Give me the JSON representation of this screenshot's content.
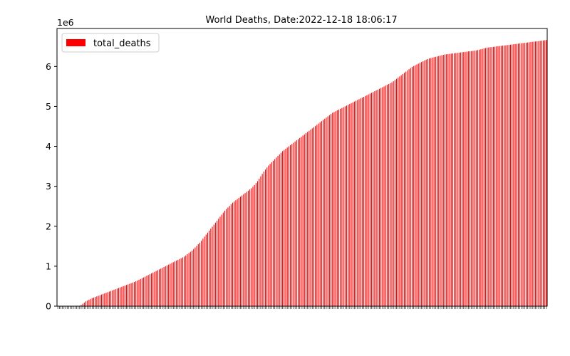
{
  "chart_data": {
    "type": "bar",
    "title": "World Deaths, Date:2022-12-18 18:06:17",
    "xlabel": "",
    "ylabel": "",
    "scale_label": "1e6",
    "ylim": [
      0,
      6.95
    ],
    "yticks": [
      "0",
      "1",
      "2",
      "3",
      "4",
      "5",
      "6"
    ],
    "ytick_values": [
      0,
      1,
      2,
      3,
      4,
      5,
      6
    ],
    "legend": {
      "position": "top-left"
    },
    "grid": false,
    "series": [
      {
        "name": "total_deaths",
        "color": "#ff0000",
        "values_millions": [
          0.0,
          0.0,
          0.0,
          0.0,
          0.0,
          0.0,
          0.0,
          0.0,
          0.0,
          0.0,
          0.0,
          0.0,
          0.001,
          0.003,
          0.01,
          0.03,
          0.06,
          0.09,
          0.12,
          0.14,
          0.16,
          0.18,
          0.2,
          0.215,
          0.23,
          0.245,
          0.26,
          0.275,
          0.29,
          0.305,
          0.32,
          0.335,
          0.35,
          0.365,
          0.38,
          0.395,
          0.41,
          0.425,
          0.44,
          0.455,
          0.47,
          0.485,
          0.5,
          0.515,
          0.53,
          0.545,
          0.56,
          0.575,
          0.59,
          0.605,
          0.62,
          0.64,
          0.66,
          0.68,
          0.7,
          0.72,
          0.74,
          0.76,
          0.78,
          0.8,
          0.82,
          0.84,
          0.86,
          0.88,
          0.9,
          0.92,
          0.94,
          0.96,
          0.98,
          1.0,
          1.02,
          1.04,
          1.06,
          1.08,
          1.1,
          1.12,
          1.14,
          1.16,
          1.18,
          1.2,
          1.22,
          1.24,
          1.27,
          1.3,
          1.33,
          1.36,
          1.39,
          1.43,
          1.47,
          1.51,
          1.55,
          1.59,
          1.64,
          1.69,
          1.74,
          1.79,
          1.84,
          1.89,
          1.94,
          1.99,
          2.04,
          2.09,
          2.14,
          2.19,
          2.24,
          2.29,
          2.34,
          2.39,
          2.43,
          2.47,
          2.51,
          2.55,
          2.59,
          2.62,
          2.65,
          2.68,
          2.71,
          2.74,
          2.77,
          2.8,
          2.83,
          2.86,
          2.89,
          2.92,
          2.95,
          2.99,
          3.03,
          3.08,
          3.13,
          3.19,
          3.25,
          3.31,
          3.37,
          3.42,
          3.47,
          3.52,
          3.56,
          3.6,
          3.64,
          3.68,
          3.72,
          3.76,
          3.8,
          3.84,
          3.88,
          3.91,
          3.94,
          3.97,
          4.0,
          4.03,
          4.06,
          4.09,
          4.12,
          4.15,
          4.18,
          4.21,
          4.24,
          4.27,
          4.3,
          4.33,
          4.36,
          4.39,
          4.42,
          4.45,
          4.48,
          4.51,
          4.54,
          4.57,
          4.6,
          4.63,
          4.66,
          4.69,
          4.72,
          4.75,
          4.78,
          4.81,
          4.84,
          4.86,
          4.88,
          4.9,
          4.92,
          4.94,
          4.96,
          4.98,
          5.0,
          5.02,
          5.04,
          5.06,
          5.08,
          5.1,
          5.12,
          5.14,
          5.16,
          5.18,
          5.2,
          5.22,
          5.24,
          5.26,
          5.28,
          5.3,
          5.32,
          5.34,
          5.36,
          5.38,
          5.4,
          5.42,
          5.44,
          5.46,
          5.48,
          5.5,
          5.52,
          5.54,
          5.56,
          5.58,
          5.6,
          5.63,
          5.66,
          5.69,
          5.72,
          5.75,
          5.78,
          5.81,
          5.84,
          5.87,
          5.9,
          5.93,
          5.96,
          5.99,
          6.01,
          6.03,
          6.05,
          6.07,
          6.09,
          6.11,
          6.13,
          6.15,
          6.17,
          6.185,
          6.2,
          6.21,
          6.22,
          6.23,
          6.24,
          6.25,
          6.26,
          6.27,
          6.28,
          6.29,
          6.3,
          6.305,
          6.31,
          6.315,
          6.32,
          6.325,
          6.33,
          6.335,
          6.34,
          6.345,
          6.35,
          6.355,
          6.36,
          6.365,
          6.37,
          6.375,
          6.38,
          6.385,
          6.39,
          6.395,
          6.4,
          6.41,
          6.42,
          6.43,
          6.44,
          6.45,
          6.46,
          6.47,
          6.475,
          6.48,
          6.485,
          6.49,
          6.495,
          6.5,
          6.505,
          6.51,
          6.515,
          6.52,
          6.525,
          6.53,
          6.535,
          6.54,
          6.545,
          6.55,
          6.555,
          6.56,
          6.565,
          6.57,
          6.575,
          6.58,
          6.585,
          6.59,
          6.595,
          6.6,
          6.605,
          6.61,
          6.615,
          6.62,
          6.625,
          6.63,
          6.635,
          6.64,
          6.645,
          6.65,
          6.655,
          6.66
        ]
      }
    ]
  }
}
